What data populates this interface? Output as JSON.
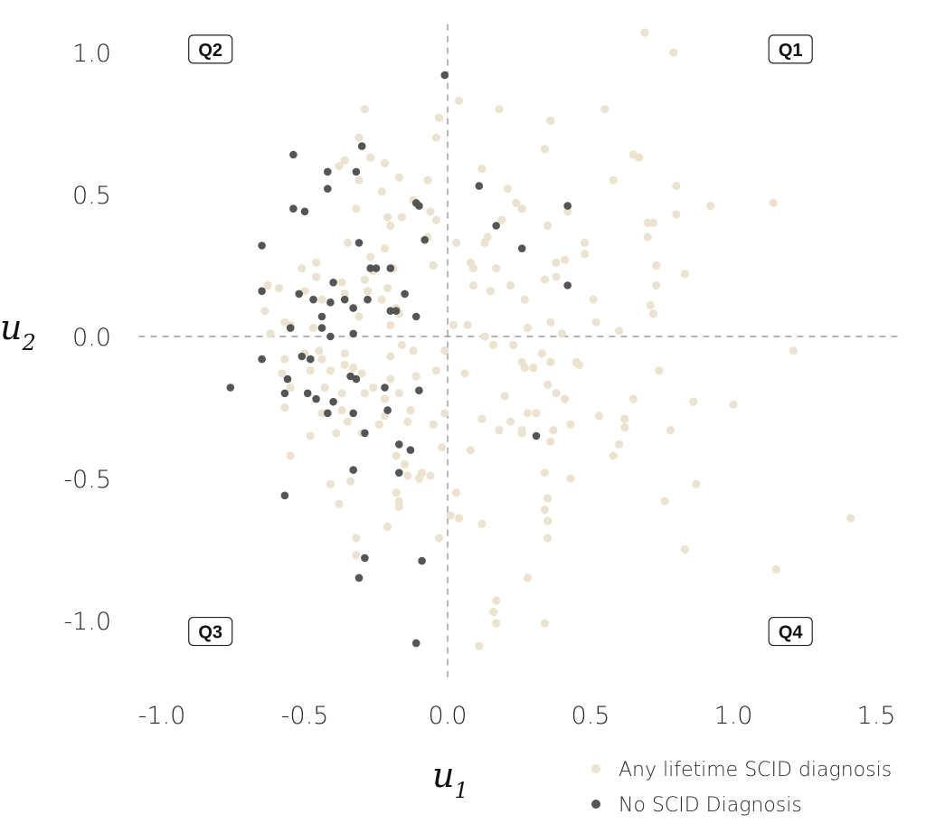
{
  "chart_data": {
    "type": "scatter",
    "xlabel": "u",
    "xlabel_sub": "1",
    "ylabel": "u",
    "ylabel_sub": "2",
    "xlim": [
      -1.1,
      1.55
    ],
    "ylim": [
      -1.2,
      1.1
    ],
    "x_ticks": [
      -1.0,
      -0.5,
      0.0,
      0.5,
      1.0,
      1.5
    ],
    "x_tick_labels": [
      "-1.0",
      "-0.5",
      "0.0",
      "0.5",
      "1.0",
      "1.5"
    ],
    "y_ticks": [
      -1.0,
      -0.5,
      0.0,
      0.5,
      1.0
    ],
    "y_tick_labels": [
      "-1.0",
      "-0.5",
      "0.0",
      "0.5",
      "1.0"
    ],
    "grid": false,
    "reference_lines": [
      {
        "axis": "x",
        "value": 0
      },
      {
        "axis": "y",
        "value": 0
      }
    ],
    "quadrant_labels": [
      {
        "text": "Q1",
        "x": 1.2,
        "y": 1.01
      },
      {
        "text": "Q2",
        "x": -0.83,
        "y": 1.01
      },
      {
        "text": "Q3",
        "x": -0.83,
        "y": -1.04
      },
      {
        "text": "Q4",
        "x": 1.2,
        "y": -1.04
      }
    ],
    "legend_position": "bottom-right",
    "series": [
      {
        "name": "Any lifetime SCID diagnosis",
        "color": "#ece2d0",
        "points": [
          [
            0.69,
            1.07
          ],
          [
            0.79,
            1.0
          ],
          [
            0.04,
            0.83
          ],
          [
            0.18,
            0.8
          ],
          [
            0.55,
            0.8
          ],
          [
            -0.29,
            0.8
          ],
          [
            -0.03,
            0.77
          ],
          [
            0.36,
            0.76
          ],
          [
            -0.04,
            0.7
          ],
          [
            -0.31,
            0.7
          ],
          [
            0.34,
            0.66
          ],
          [
            -0.36,
            0.62
          ],
          [
            0.65,
            0.64
          ],
          [
            -0.27,
            0.63
          ],
          [
            0.67,
            0.63
          ],
          [
            -0.22,
            0.61
          ],
          [
            -0.38,
            0.6
          ],
          [
            0.12,
            0.59
          ],
          [
            -0.17,
            0.56
          ],
          [
            -0.31,
            0.55
          ],
          [
            -0.07,
            0.55
          ],
          [
            0.58,
            0.55
          ],
          [
            -0.23,
            0.51
          ],
          [
            0.21,
            0.52
          ],
          [
            0.8,
            0.53
          ],
          [
            -0.12,
            0.48
          ],
          [
            0.24,
            0.47
          ],
          [
            1.14,
            0.47
          ],
          [
            0.92,
            0.46
          ],
          [
            -0.32,
            0.45
          ],
          [
            0.26,
            0.45
          ],
          [
            0.42,
            0.44
          ],
          [
            -0.06,
            0.44
          ],
          [
            -0.04,
            0.41
          ],
          [
            0.19,
            0.41
          ],
          [
            -0.21,
            0.42
          ],
          [
            -0.16,
            0.42
          ],
          [
            0.35,
            0.39
          ],
          [
            0.7,
            0.4
          ],
          [
            0.72,
            0.4
          ],
          [
            0.8,
            0.43
          ],
          [
            -0.2,
            0.39
          ],
          [
            0.14,
            0.35
          ],
          [
            -0.07,
            0.35
          ],
          [
            0.13,
            0.33
          ],
          [
            0.03,
            0.33
          ],
          [
            0.48,
            0.33
          ],
          [
            -0.35,
            0.33
          ],
          [
            -0.22,
            0.31
          ],
          [
            0.7,
            0.35
          ],
          [
            -0.27,
            0.28
          ],
          [
            -0.46,
            0.26
          ],
          [
            -0.05,
            0.25
          ],
          [
            0.08,
            0.26
          ],
          [
            0.09,
            0.24
          ],
          [
            0.17,
            0.24
          ],
          [
            0.38,
            0.26
          ],
          [
            0.41,
            0.27
          ],
          [
            0.48,
            0.29
          ],
          [
            0.73,
            0.25
          ],
          [
            -0.51,
            0.24
          ],
          [
            -0.26,
            0.23
          ],
          [
            -0.19,
            0.24
          ],
          [
            -0.37,
            0.19
          ],
          [
            -0.29,
            0.2
          ],
          [
            -0.46,
            0.21
          ],
          [
            0.38,
            0.21
          ],
          [
            0.34,
            0.2
          ],
          [
            0.83,
            0.22
          ],
          [
            -0.59,
            0.17
          ],
          [
            -0.63,
            0.18
          ],
          [
            -0.21,
            0.17
          ],
          [
            -0.5,
            0.16
          ],
          [
            -0.28,
            0.16
          ],
          [
            -0.36,
            0.15
          ],
          [
            0.09,
            0.18
          ],
          [
            0.15,
            0.16
          ],
          [
            0.22,
            0.18
          ],
          [
            0.73,
            0.18
          ],
          [
            -0.44,
            0.13
          ],
          [
            -0.23,
            0.13
          ],
          [
            0.27,
            0.13
          ],
          [
            0.51,
            0.13
          ],
          [
            -0.18,
            0.1
          ],
          [
            -0.17,
            0.08
          ],
          [
            -0.31,
            0.07
          ],
          [
            0.71,
            0.11
          ],
          [
            0.72,
            0.08
          ],
          [
            -0.57,
            0.05
          ],
          [
            -0.64,
            0.09
          ],
          [
            -0.62,
            0.01
          ],
          [
            -0.55,
            0.04
          ],
          [
            -0.47,
            0.03
          ],
          [
            -0.2,
            0.04
          ],
          [
            0.02,
            0.04
          ],
          [
            0.07,
            0.04
          ],
          [
            0.28,
            0.03
          ],
          [
            0.36,
            0.05
          ],
          [
            0.52,
            0.05
          ],
          [
            0.6,
            0.02
          ],
          [
            0.4,
            0.01
          ],
          [
            0.13,
            0.0
          ],
          [
            -0.5,
            -0.06
          ],
          [
            -0.45,
            -0.05
          ],
          [
            -0.2,
            -0.07
          ],
          [
            -0.16,
            -0.03
          ],
          [
            -0.12,
            -0.05
          ],
          [
            -0.01,
            -0.05
          ],
          [
            0.16,
            -0.03
          ],
          [
            0.23,
            -0.03
          ],
          [
            1.21,
            -0.05
          ],
          [
            -0.57,
            -0.08
          ],
          [
            -0.44,
            -0.08
          ],
          [
            -0.36,
            -0.06
          ],
          [
            0.26,
            -0.09
          ],
          [
            0.33,
            -0.06
          ],
          [
            0.36,
            -0.09
          ],
          [
            0.45,
            -0.09
          ],
          [
            0.46,
            -0.1
          ],
          [
            -0.58,
            -0.13
          ],
          [
            -0.48,
            -0.12
          ],
          [
            -0.41,
            -0.12
          ],
          [
            -0.36,
            -0.1
          ],
          [
            -0.33,
            -0.11
          ],
          [
            -0.3,
            -0.13
          ],
          [
            -0.2,
            -0.15
          ],
          [
            -0.11,
            -0.14
          ],
          [
            -0.04,
            -0.12
          ],
          [
            0.06,
            -0.13
          ],
          [
            0.27,
            -0.11
          ],
          [
            0.3,
            -0.11
          ],
          [
            0.74,
            -0.12
          ],
          [
            -0.55,
            -0.18
          ],
          [
            -0.43,
            -0.18
          ],
          [
            -0.37,
            -0.2
          ],
          [
            -0.29,
            -0.2
          ],
          [
            -0.26,
            -0.18
          ],
          [
            -0.22,
            -0.22
          ],
          [
            -0.17,
            -0.2
          ],
          [
            0.2,
            -0.21
          ],
          [
            0.35,
            -0.17
          ],
          [
            0.38,
            -0.2
          ],
          [
            0.41,
            -0.22
          ],
          [
            -0.57,
            -0.25
          ],
          [
            -0.44,
            -0.27
          ],
          [
            -0.37,
            -0.26
          ],
          [
            -0.22,
            -0.28
          ],
          [
            -0.13,
            -0.26
          ],
          [
            -0.01,
            -0.27
          ],
          [
            0.12,
            -0.29
          ],
          [
            0.22,
            -0.3
          ],
          [
            0.28,
            -0.27
          ],
          [
            0.31,
            -0.27
          ],
          [
            0.53,
            -0.28
          ],
          [
            0.62,
            -0.29
          ],
          [
            0.86,
            -0.23
          ],
          [
            1.0,
            -0.24
          ],
          [
            0.65,
            -0.22
          ],
          [
            -0.35,
            -0.3
          ],
          [
            -0.24,
            -0.31
          ],
          [
            -0.14,
            -0.3
          ],
          [
            -0.05,
            -0.31
          ],
          [
            0.18,
            -0.33
          ],
          [
            0.26,
            -0.33
          ],
          [
            0.37,
            -0.33
          ],
          [
            0.43,
            -0.31
          ],
          [
            0.62,
            -0.32
          ],
          [
            0.78,
            -0.33
          ],
          [
            -0.39,
            -0.34
          ],
          [
            -0.3,
            -0.34
          ],
          [
            -0.48,
            -0.35
          ],
          [
            0.6,
            -0.38
          ],
          [
            0.36,
            -0.37
          ],
          [
            0.08,
            -0.4
          ],
          [
            -0.02,
            -0.39
          ],
          [
            0.26,
            -0.34
          ],
          [
            -0.55,
            -0.42
          ],
          [
            -0.18,
            -0.42
          ],
          [
            -0.15,
            -0.45
          ],
          [
            0.58,
            -0.42
          ],
          [
            -0.14,
            -0.49
          ],
          [
            -0.09,
            -0.48
          ],
          [
            -0.1,
            -0.5
          ],
          [
            -0.06,
            -0.49
          ],
          [
            0.34,
            -0.48
          ],
          [
            0.43,
            -0.5
          ],
          [
            -0.34,
            -0.51
          ],
          [
            -0.41,
            -0.52
          ],
          [
            0.03,
            -0.55
          ],
          [
            0.87,
            -0.52
          ],
          [
            -0.18,
            -0.55
          ],
          [
            -0.17,
            -0.58
          ],
          [
            0.35,
            -0.57
          ],
          [
            0.76,
            -0.58
          ],
          [
            -0.38,
            -0.59
          ],
          [
            -0.17,
            -0.6
          ],
          [
            0.34,
            -0.61
          ],
          [
            0.01,
            -0.63
          ],
          [
            0.04,
            -0.64
          ],
          [
            0.12,
            -0.66
          ],
          [
            0.35,
            -0.65
          ],
          [
            1.41,
            -0.64
          ],
          [
            -0.21,
            -0.67
          ],
          [
            -0.32,
            -0.71
          ],
          [
            -0.03,
            -0.71
          ],
          [
            0.35,
            -0.71
          ],
          [
            0.83,
            -0.75
          ],
          [
            -0.32,
            -0.77
          ],
          [
            1.15,
            -0.82
          ],
          [
            0.28,
            -0.85
          ],
          [
            0.17,
            -0.93
          ],
          [
            0.16,
            -0.97
          ],
          [
            0.17,
            -1.01
          ],
          [
            0.34,
            -1.01
          ],
          [
            0.11,
            -1.09
          ]
        ]
      },
      {
        "name": "No SCID Diagnosis",
        "color": "#555555",
        "points": [
          [
            -0.01,
            0.92
          ],
          [
            -0.3,
            0.67
          ],
          [
            -0.54,
            0.64
          ],
          [
            -0.42,
            0.58
          ],
          [
            -0.32,
            0.58
          ],
          [
            0.11,
            0.53
          ],
          [
            -0.42,
            0.52
          ],
          [
            -0.11,
            0.47
          ],
          [
            -0.1,
            0.46
          ],
          [
            0.42,
            0.46
          ],
          [
            -0.54,
            0.45
          ],
          [
            -0.5,
            0.44
          ],
          [
            0.17,
            0.39
          ],
          [
            -0.08,
            0.34
          ],
          [
            -0.31,
            0.33
          ],
          [
            -0.65,
            0.32
          ],
          [
            0.26,
            0.31
          ],
          [
            -0.27,
            0.24
          ],
          [
            -0.25,
            0.24
          ],
          [
            -0.2,
            0.24
          ],
          [
            -0.4,
            0.19
          ],
          [
            0.42,
            0.18
          ],
          [
            -0.65,
            0.16
          ],
          [
            -0.52,
            0.15
          ],
          [
            -0.15,
            0.15
          ],
          [
            -0.36,
            0.13
          ],
          [
            -0.28,
            0.13
          ],
          [
            -0.47,
            0.13
          ],
          [
            -0.41,
            0.12
          ],
          [
            -0.33,
            0.1
          ],
          [
            -0.2,
            0.09
          ],
          [
            -0.18,
            0.09
          ],
          [
            -0.11,
            0.07
          ],
          [
            -0.44,
            0.07
          ],
          [
            -0.55,
            0.03
          ],
          [
            -0.44,
            0.03
          ],
          [
            -0.33,
            0.01
          ],
          [
            -0.41,
            0.0
          ],
          [
            -0.51,
            -0.07
          ],
          [
            -0.48,
            -0.08
          ],
          [
            -0.65,
            -0.08
          ],
          [
            -0.34,
            -0.14
          ],
          [
            -0.32,
            -0.15
          ],
          [
            -0.56,
            -0.15
          ],
          [
            -0.76,
            -0.18
          ],
          [
            -0.22,
            -0.18
          ],
          [
            -0.1,
            -0.19
          ],
          [
            -0.57,
            -0.2
          ],
          [
            -0.49,
            -0.2
          ],
          [
            -0.46,
            -0.22
          ],
          [
            -0.4,
            -0.23
          ],
          [
            -0.21,
            -0.26
          ],
          [
            -0.33,
            -0.27
          ],
          [
            -0.42,
            -0.27
          ],
          [
            -0.29,
            -0.34
          ],
          [
            0.31,
            -0.35
          ],
          [
            -0.17,
            -0.38
          ],
          [
            -0.13,
            -0.4
          ],
          [
            -0.33,
            -0.47
          ],
          [
            -0.17,
            -0.48
          ],
          [
            -0.57,
            -0.56
          ],
          [
            -0.29,
            -0.78
          ],
          [
            -0.09,
            -0.79
          ],
          [
            -0.31,
            -0.85
          ],
          [
            -0.11,
            -1.08
          ]
        ]
      }
    ]
  }
}
